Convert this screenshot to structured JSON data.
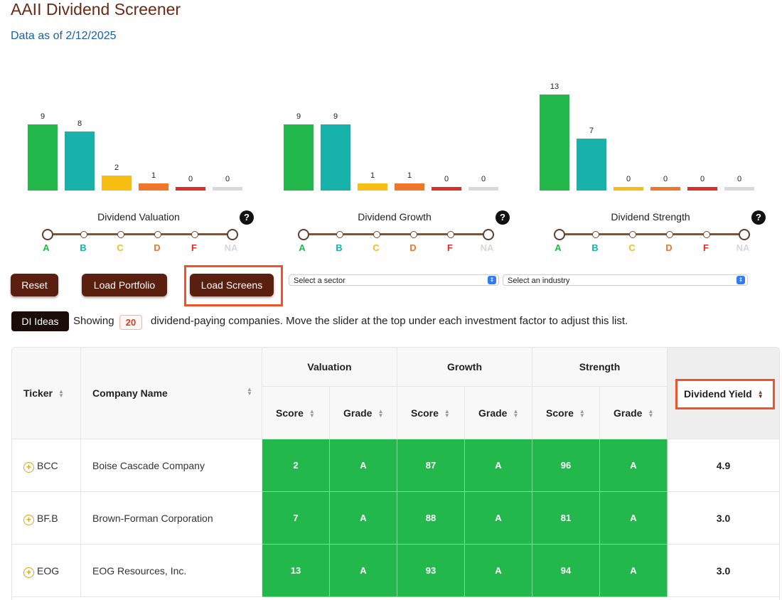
{
  "page": {
    "title": "AAII Dividend Screener",
    "subtitle": "Data as of 2/12/2025"
  },
  "colors": {
    "A": "#22b84c",
    "B": "#17b3aa",
    "C": "#f7bd12",
    "D": "#f0772a",
    "F": "#d9302a",
    "NA": "#d8d8d8"
  },
  "chart_data": [
    {
      "type": "bar",
      "title": "Dividend Valuation",
      "categories": [
        "A",
        "B",
        "C",
        "D",
        "F",
        "NA"
      ],
      "values": [
        9,
        8,
        2,
        1,
        0,
        0
      ]
    },
    {
      "type": "bar",
      "title": "Dividend Growth",
      "categories": [
        "A",
        "B",
        "C",
        "D",
        "F",
        "NA"
      ],
      "values": [
        9,
        9,
        1,
        1,
        0,
        0
      ]
    },
    {
      "type": "bar",
      "title": "Dividend Strength",
      "categories": [
        "A",
        "B",
        "C",
        "D",
        "F",
        "NA"
      ],
      "values": [
        13,
        7,
        0,
        0,
        0,
        0
      ]
    }
  ],
  "slider_labels": [
    "A",
    "B",
    "C",
    "D",
    "F",
    "NA"
  ],
  "help_label": "?",
  "controls": {
    "reset": "Reset",
    "load_portfolio": "Load Portfolio",
    "load_screens": "Load Screens",
    "sector_placeholder": "Select a sector",
    "industry_placeholder": "Select an industry",
    "select_arrow": "⇕"
  },
  "summary": {
    "ideas": "DI Ideas",
    "showing": "Showing",
    "count": "20",
    "description": "dividend-paying companies. Move the slider at the top under each investment factor to adjust this list."
  },
  "table": {
    "headers": {
      "ticker": "Ticker",
      "company": "Company Name",
      "valuation": "Valuation",
      "growth": "Growth",
      "strength": "Strength",
      "score": "Score",
      "grade": "Grade",
      "yield": "Dividend Yield"
    },
    "rows": [
      {
        "ticker": "BCC",
        "company": "Boise Cascade Company",
        "val_score": "2",
        "val_grade": "A",
        "gro_score": "87",
        "gro_grade": "A",
        "str_score": "96",
        "str_grade": "A",
        "yield": "4.9"
      },
      {
        "ticker": "BF.B",
        "company": "Brown-Forman Corporation",
        "val_score": "7",
        "val_grade": "A",
        "gro_score": "88",
        "gro_grade": "A",
        "str_score": "81",
        "str_grade": "A",
        "yield": "3.0"
      },
      {
        "ticker": "EOG",
        "company": "EOG Resources, Inc.",
        "val_score": "13",
        "val_grade": "A",
        "gro_score": "93",
        "gro_grade": "A",
        "str_score": "94",
        "str_grade": "A",
        "yield": "3.0"
      }
    ]
  }
}
